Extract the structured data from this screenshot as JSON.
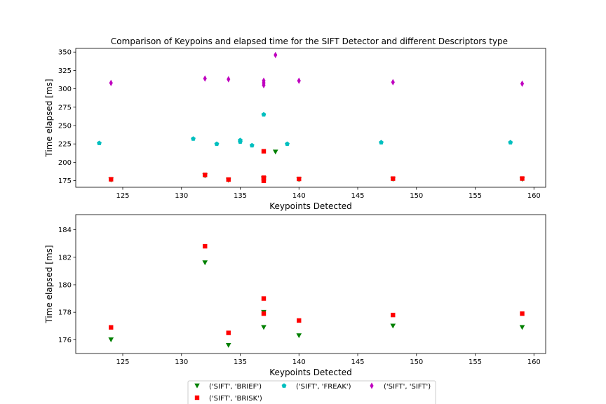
{
  "chart_data": [
    {
      "type": "scatter",
      "title": "Comparison of Keypoins and elapsed time for the SIFT Detector and different  Descriptors type",
      "xlabel": "Keypoints Detected",
      "ylabel": "Time elapsed [ms]",
      "xlim": [
        121,
        161
      ],
      "ylim": [
        166,
        355
      ],
      "xticks": [
        125,
        130,
        135,
        140,
        145,
        150,
        155,
        160
      ],
      "yticks": [
        175,
        200,
        225,
        250,
        275,
        300,
        325,
        350
      ],
      "series": [
        {
          "name": "('SIFT', 'BRIEF')",
          "marker": "triangle-down",
          "color": "#008000",
          "points": [
            [
              124,
              176.0
            ],
            [
              132,
              181.6
            ],
            [
              134,
              175.6
            ],
            [
              137,
              176.9
            ],
            [
              137,
              178.0
            ],
            [
              138,
              214.0
            ],
            [
              140,
              176.3
            ],
            [
              148,
              177.0
            ],
            [
              159,
              176.9
            ]
          ]
        },
        {
          "name": "('SIFT', 'BRISK')",
          "marker": "square",
          "color": "#ff0000",
          "points": [
            [
              124,
              176.9
            ],
            [
              132,
              182.8
            ],
            [
              134,
              176.5
            ],
            [
              137,
              177.9
            ],
            [
              137,
              179.0
            ],
            [
              137,
              174.8
            ],
            [
              137,
              215.0
            ],
            [
              140,
              177.4
            ],
            [
              148,
              177.8
            ],
            [
              159,
              177.9
            ]
          ]
        },
        {
          "name": "('SIFT', 'FREAK')",
          "marker": "pentagon",
          "color": "#00bfbf",
          "points": [
            [
              123,
              226
            ],
            [
              131,
              232
            ],
            [
              133,
              225
            ],
            [
              135,
              230
            ],
            [
              135,
              228
            ],
            [
              136,
              223
            ],
            [
              137,
              265
            ],
            [
              139,
              225
            ],
            [
              147,
              227
            ],
            [
              158,
              227
            ]
          ]
        },
        {
          "name": "('SIFT', 'SIFT')",
          "marker": "thin-diamond",
          "color": "#bf00bf",
          "points": [
            [
              124,
              308
            ],
            [
              132,
              314
            ],
            [
              134,
              313
            ],
            [
              137,
              311
            ],
            [
              137,
              308
            ],
            [
              137,
              305
            ],
            [
              138,
              346
            ],
            [
              140,
              311
            ],
            [
              148,
              309
            ],
            [
              159,
              307
            ]
          ]
        }
      ]
    },
    {
      "type": "scatter",
      "title": "",
      "xlabel": "Keypoints Detected",
      "ylabel": "Time elapsed [ms]",
      "xlim": [
        121,
        161
      ],
      "ylim": [
        175.0,
        185.1
      ],
      "xticks": [
        125,
        130,
        135,
        140,
        145,
        150,
        155,
        160
      ],
      "yticks": [
        176,
        178,
        180,
        182,
        184
      ],
      "series": [
        {
          "name": "('SIFT', 'BRIEF')",
          "marker": "triangle-down",
          "color": "#008000",
          "points": [
            [
              124,
              176.0
            ],
            [
              132,
              181.6
            ],
            [
              134,
              175.6
            ],
            [
              137,
              176.9
            ],
            [
              137,
              178.0
            ],
            [
              140,
              176.3
            ],
            [
              148,
              177.0
            ],
            [
              159,
              176.9
            ]
          ]
        },
        {
          "name": "('SIFT', 'BRISK')",
          "marker": "square",
          "color": "#ff0000",
          "points": [
            [
              124,
              176.9
            ],
            [
              132,
              182.8
            ],
            [
              134,
              176.5
            ],
            [
              137,
              177.9
            ],
            [
              137,
              179.0
            ],
            [
              140,
              177.4
            ],
            [
              148,
              177.8
            ],
            [
              159,
              177.9
            ]
          ]
        }
      ]
    }
  ],
  "legend": {
    "placement": "bottom-center",
    "entries": [
      {
        "label": "('SIFT', 'BRIEF')",
        "marker": "triangle-down",
        "color": "#008000"
      },
      {
        "label": "('SIFT', 'BRISK')",
        "marker": "square",
        "color": "#ff0000"
      },
      {
        "label": "('SIFT', 'FREAK')",
        "marker": "pentagon",
        "color": "#00bfbf"
      },
      {
        "label": "('SIFT', 'SIFT')",
        "marker": "thin-diamond",
        "color": "#bf00bf"
      }
    ]
  }
}
